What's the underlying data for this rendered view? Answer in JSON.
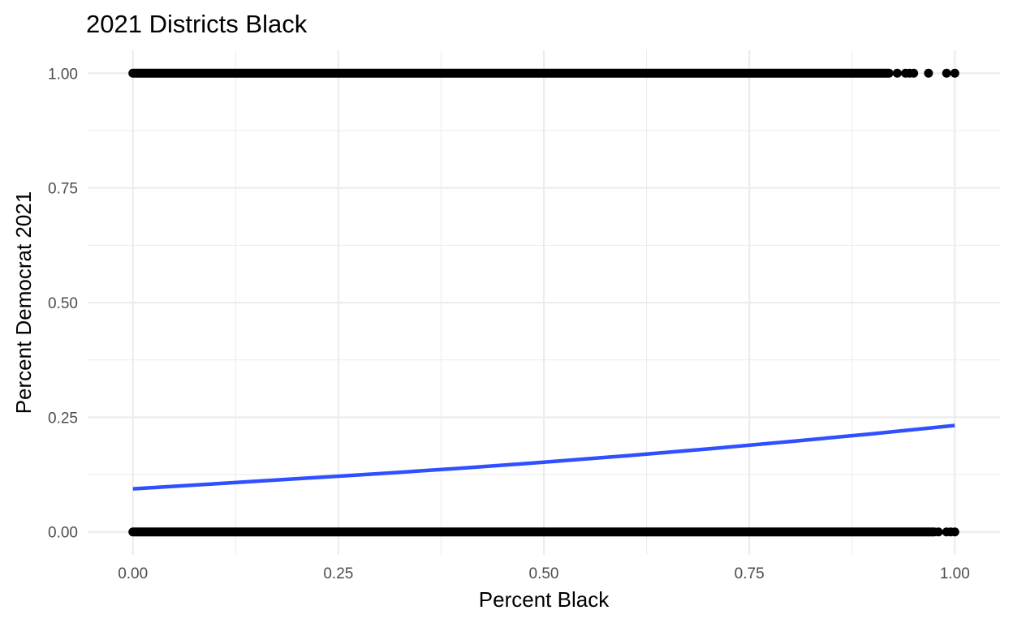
{
  "chart_data": {
    "type": "scatter",
    "title": "2021 Districts Black",
    "xlabel": "Percent Black",
    "ylabel": "Percent Democrat 2021",
    "xlim": [
      -0.055,
      1.055
    ],
    "ylim": [
      -0.05,
      1.05
    ],
    "x_ticks": [
      {
        "value": 0,
        "label": "0.00"
      },
      {
        "value": 0.25,
        "label": "0.25"
      },
      {
        "value": 0.5,
        "label": "0.50"
      },
      {
        "value": 0.75,
        "label": "0.75"
      },
      {
        "value": 1,
        "label": "1.00"
      }
    ],
    "y_ticks": [
      {
        "value": 0,
        "label": "0.00"
      },
      {
        "value": 0.25,
        "label": "0.25"
      },
      {
        "value": 0.5,
        "label": "0.50"
      },
      {
        "value": 0.75,
        "label": "0.75"
      },
      {
        "value": 1,
        "label": "1.00"
      }
    ],
    "grid": true,
    "legend": "none",
    "series": [
      {
        "type": "scatter",
        "points": [
          {
            "x_range": [
              0.0,
              0.92
            ],
            "y": 1
          },
          {
            "x": 0.93,
            "y": 1
          },
          {
            "x": 0.94,
            "y": 1
          },
          {
            "x": 0.945,
            "y": 1
          },
          {
            "x": 0.95,
            "y": 1
          },
          {
            "x": 0.968,
            "y": 1
          },
          {
            "x": 0.99,
            "y": 1
          },
          {
            "x": 1.0,
            "y": 1
          },
          {
            "x_range": [
              0.0,
              0.975
            ],
            "y": 0
          },
          {
            "x": 0.98,
            "y": 0
          },
          {
            "x": 0.99,
            "y": 0
          },
          {
            "x": 0.995,
            "y": 0
          },
          {
            "x": 1.0,
            "y": 0
          }
        ]
      },
      {
        "type": "line",
        "x": [
          0,
          0.1,
          0.2,
          0.3,
          0.4,
          0.5,
          0.6,
          0.7,
          0.8,
          0.9,
          1.0
        ],
        "y": [
          0.094,
          0.105,
          0.116,
          0.127,
          0.139,
          0.152,
          0.166,
          0.181,
          0.197,
          0.214,
          0.232
        ]
      }
    ],
    "colors": {
      "points": "#000000",
      "fit_line": "#3050ff",
      "grid": "#ebebeb",
      "tick_text": "#4d4d4d"
    }
  }
}
